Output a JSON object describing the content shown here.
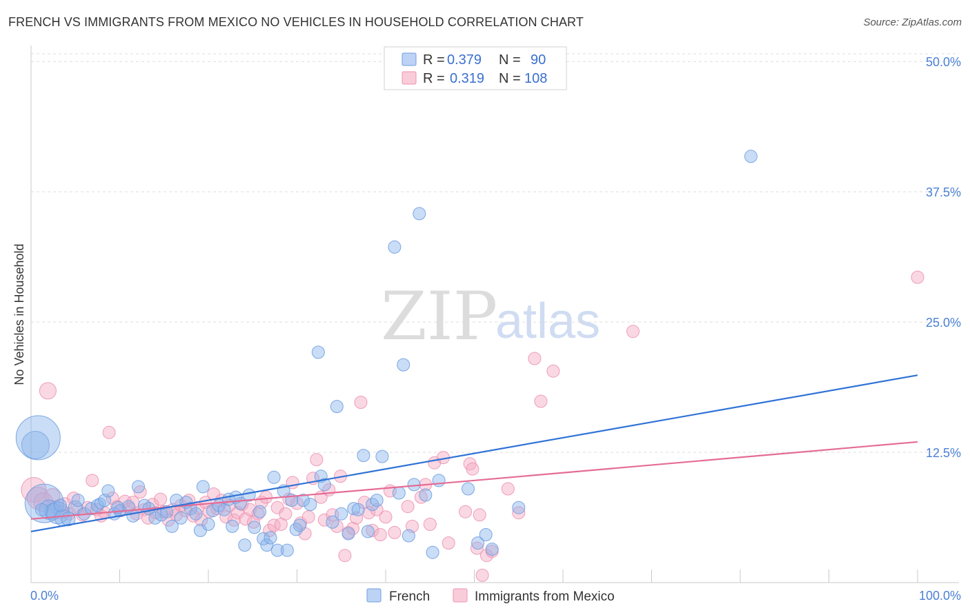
{
  "title": "FRENCH VS IMMIGRANTS FROM MEXICO NO VEHICLES IN HOUSEHOLD CORRELATION CHART",
  "source": "Source: ZipAtlas.com",
  "watermark": {
    "zip": "ZIP",
    "atlas": "atlas"
  },
  "legend": {
    "rows": [
      {
        "r_label": "R = ",
        "r_value": "0.379",
        "n_label": "N = ",
        "n_value": "90"
      },
      {
        "r_label": "R = ",
        "r_value": "0.319",
        "n_label": "N = ",
        "n_value": "108"
      }
    ]
  },
  "chart_data": {
    "type": "scatter",
    "title": "FRENCH VS IMMIGRANTS FROM MEXICO NO VEHICLES IN HOUSEHOLD CORRELATION CHART",
    "xlabel": "",
    "ylabel": "No Vehicles in Household",
    "xlim": [
      0,
      100
    ],
    "ylim": [
      0,
      52
    ],
    "x_tick_labels": [
      "0.0%",
      "100.0%"
    ],
    "y_ticks": [
      12.5,
      25.0,
      37.5,
      50.0
    ],
    "y_tick_labels": [
      "12.5%",
      "25.0%",
      "37.5%",
      "50.0%"
    ],
    "grid": true,
    "legend_position": "top-center",
    "colors": {
      "french": "#8ab4ea",
      "french_line": "#2f72d6",
      "mexico": "#f4a9c0",
      "mexico_line": "#e56b95"
    },
    "series": [
      {
        "name": "French",
        "r": 0.379,
        "n": 90,
        "trend": [
          [
            0,
            4.9
          ],
          [
            100,
            19.9
          ]
        ],
        "points": [
          [
            0.5,
            13.2,
            20
          ],
          [
            0.8,
            13.9,
            32
          ],
          [
            1.5,
            7.6,
            28
          ],
          [
            2.0,
            7.0,
            14
          ],
          [
            2.5,
            6.8,
            12
          ],
          [
            3.0,
            6.7,
            16
          ],
          [
            3.6,
            6.2,
            12
          ],
          [
            4.2,
            6.1,
            10
          ],
          [
            5.0,
            7.2,
            10
          ],
          [
            5.3,
            7.9,
            9
          ],
          [
            6.0,
            6.6,
            9
          ],
          [
            6.8,
            7.1,
            9
          ],
          [
            7.5,
            7.4,
            9
          ],
          [
            7.8,
            7.6,
            8
          ],
          [
            8.3,
            7.9,
            9
          ],
          [
            8.7,
            8.8,
            9
          ],
          [
            9.4,
            6.6,
            9
          ],
          [
            10.0,
            6.9,
            9
          ],
          [
            11.0,
            7.3,
            9
          ],
          [
            11.5,
            6.4,
            9
          ],
          [
            12.1,
            9.2,
            9
          ],
          [
            12.8,
            7.4,
            9
          ],
          [
            13.3,
            7.1,
            9
          ],
          [
            14.0,
            6.2,
            9
          ],
          [
            14.7,
            6.5,
            9
          ],
          [
            15.3,
            6.8,
            9
          ],
          [
            15.9,
            5.4,
            9
          ],
          [
            16.4,
            7.9,
            9
          ],
          [
            16.9,
            6.2,
            9
          ],
          [
            17.5,
            7.7,
            9
          ],
          [
            18.0,
            7.1,
            9
          ],
          [
            18.6,
            6.6,
            9
          ],
          [
            19.1,
            5.0,
            9
          ],
          [
            19.4,
            9.2,
            9
          ],
          [
            20.0,
            5.6,
            9
          ],
          [
            20.5,
            6.9,
            9
          ],
          [
            21.2,
            7.4,
            9
          ],
          [
            21.8,
            7.0,
            9
          ],
          [
            22.3,
            8.0,
            9
          ],
          [
            22.7,
            5.4,
            9
          ],
          [
            23.1,
            8.2,
            9
          ],
          [
            23.6,
            7.6,
            9
          ],
          [
            24.1,
            3.6,
            9
          ],
          [
            24.6,
            8.4,
            9
          ],
          [
            25.2,
            5.3,
            9
          ],
          [
            25.8,
            6.8,
            9
          ],
          [
            26.2,
            4.2,
            9
          ],
          [
            26.6,
            3.6,
            9
          ],
          [
            27.0,
            4.3,
            9
          ],
          [
            27.4,
            10.1,
            9
          ],
          [
            27.8,
            3.1,
            9
          ],
          [
            28.5,
            8.8,
            9
          ],
          [
            28.9,
            3.1,
            9
          ],
          [
            29.4,
            7.9,
            9
          ],
          [
            29.9,
            5.1,
            9
          ],
          [
            30.3,
            5.5,
            9
          ],
          [
            30.7,
            7.9,
            9
          ],
          [
            31.5,
            7.5,
            9
          ],
          [
            32.4,
            22.1,
            9
          ],
          [
            32.7,
            10.2,
            9
          ],
          [
            33.1,
            9.4,
            9
          ],
          [
            34.0,
            5.8,
            9
          ],
          [
            34.5,
            16.9,
            9
          ],
          [
            35.0,
            6.6,
            9
          ],
          [
            35.8,
            4.7,
            9
          ],
          [
            36.4,
            7.1,
            9
          ],
          [
            36.9,
            7.0,
            9
          ],
          [
            37.5,
            12.2,
            9
          ],
          [
            38.0,
            4.9,
            9
          ],
          [
            38.5,
            7.5,
            9
          ],
          [
            39.0,
            7.9,
            9
          ],
          [
            39.6,
            12.1,
            9
          ],
          [
            41.0,
            32.2,
            9
          ],
          [
            41.5,
            8.6,
            9
          ],
          [
            42.0,
            20.9,
            9
          ],
          [
            42.6,
            4.5,
            9
          ],
          [
            43.2,
            9.4,
            9
          ],
          [
            43.8,
            35.4,
            9
          ],
          [
            44.5,
            8.4,
            9
          ],
          [
            45.3,
            2.9,
            9
          ],
          [
            46.0,
            9.8,
            9
          ],
          [
            49.3,
            9.0,
            9
          ],
          [
            50.4,
            3.8,
            9
          ],
          [
            51.3,
            4.6,
            9
          ],
          [
            52.0,
            3.2,
            9
          ],
          [
            55.0,
            7.2,
            9
          ],
          [
            81.2,
            40.9,
            9
          ],
          [
            1.2,
            7.0,
            9
          ],
          [
            3.3,
            7.4,
            9
          ],
          [
            9.8,
            7.2,
            9
          ]
        ]
      },
      {
        "name": "Immigrants from Mexico",
        "r": 0.319,
        "n": 108,
        "trend": [
          [
            0,
            6.1
          ],
          [
            100,
            13.5
          ]
        ],
        "points": [
          [
            0.3,
            8.9,
            18
          ],
          [
            0.8,
            8.1,
            16
          ],
          [
            1.4,
            7.7,
            14
          ],
          [
            1.9,
            18.4,
            12
          ],
          [
            2.4,
            8.3,
            11
          ],
          [
            2.8,
            7.2,
            10
          ],
          [
            3.3,
            6.8,
            10
          ],
          [
            3.8,
            7.5,
            10
          ],
          [
            4.3,
            6.6,
            9
          ],
          [
            4.8,
            8.1,
            9
          ],
          [
            5.3,
            7.0,
            9
          ],
          [
            5.8,
            6.5,
            9
          ],
          [
            6.4,
            7.2,
            9
          ],
          [
            6.9,
            9.8,
            9
          ],
          [
            7.4,
            7.0,
            9
          ],
          [
            7.9,
            6.4,
            9
          ],
          [
            8.3,
            6.7,
            9
          ],
          [
            8.8,
            14.4,
            9
          ],
          [
            9.2,
            8.1,
            9
          ],
          [
            9.7,
            7.3,
            9
          ],
          [
            10.1,
            6.9,
            9
          ],
          [
            10.6,
            7.8,
            9
          ],
          [
            11.1,
            7.1,
            9
          ],
          [
            11.5,
            7.7,
            9
          ],
          [
            11.9,
            6.6,
            9
          ],
          [
            12.3,
            8.7,
            9
          ],
          [
            12.8,
            7.0,
            9
          ],
          [
            13.2,
            6.2,
            9
          ],
          [
            13.7,
            7.5,
            9
          ],
          [
            14.1,
            6.7,
            9
          ],
          [
            14.6,
            8.0,
            9
          ],
          [
            15.0,
            6.8,
            9
          ],
          [
            15.5,
            6.0,
            9
          ],
          [
            16.0,
            7.0,
            9
          ],
          [
            16.4,
            6.5,
            9
          ],
          [
            16.9,
            7.4,
            9
          ],
          [
            17.4,
            6.9,
            9
          ],
          [
            17.8,
            7.9,
            9
          ],
          [
            18.3,
            6.4,
            9
          ],
          [
            18.8,
            7.2,
            9
          ],
          [
            19.2,
            6.0,
            9
          ],
          [
            19.7,
            7.7,
            9
          ],
          [
            20.1,
            6.8,
            9
          ],
          [
            20.6,
            8.5,
            9
          ],
          [
            21.0,
            7.1,
            9
          ],
          [
            21.5,
            7.9,
            9
          ],
          [
            22.0,
            6.3,
            9
          ],
          [
            22.4,
            7.4,
            9
          ],
          [
            22.9,
            6.0,
            9
          ],
          [
            23.3,
            6.7,
            9
          ],
          [
            23.8,
            7.5,
            9
          ],
          [
            24.2,
            6.1,
            9
          ],
          [
            24.7,
            7.0,
            9
          ],
          [
            25.1,
            5.8,
            9
          ],
          [
            25.6,
            6.6,
            9
          ],
          [
            26.0,
            7.7,
            9
          ],
          [
            26.5,
            8.2,
            9
          ],
          [
            26.9,
            5.0,
            9
          ],
          [
            27.4,
            5.5,
            9
          ],
          [
            27.8,
            7.2,
            9
          ],
          [
            28.2,
            5.6,
            9
          ],
          [
            28.7,
            6.6,
            9
          ],
          [
            29.1,
            8.0,
            9
          ],
          [
            29.5,
            9.6,
            9
          ],
          [
            30.0,
            7.6,
            9
          ],
          [
            30.4,
            5.7,
            9
          ],
          [
            30.9,
            4.7,
            9
          ],
          [
            31.3,
            6.3,
            9
          ],
          [
            31.8,
            10.0,
            9
          ],
          [
            32.2,
            11.8,
            9
          ],
          [
            32.7,
            8.2,
            9
          ],
          [
            33.1,
            6.0,
            9
          ],
          [
            33.6,
            8.9,
            9
          ],
          [
            34.0,
            6.5,
            9
          ],
          [
            34.5,
            5.4,
            9
          ],
          [
            34.9,
            10.2,
            9
          ],
          [
            35.4,
            2.6,
            9
          ],
          [
            35.8,
            4.8,
            9
          ],
          [
            36.3,
            5.2,
            9
          ],
          [
            36.7,
            6.2,
            9
          ],
          [
            37.2,
            17.3,
            9
          ],
          [
            37.6,
            7.7,
            9
          ],
          [
            38.1,
            6.7,
            9
          ],
          [
            38.5,
            5.0,
            9
          ],
          [
            39.0,
            7.0,
            9
          ],
          [
            39.4,
            4.6,
            9
          ],
          [
            40.0,
            6.3,
            9
          ],
          [
            40.5,
            8.8,
            9
          ],
          [
            41.0,
            4.8,
            9
          ],
          [
            42.5,
            7.3,
            9
          ],
          [
            43.0,
            5.4,
            9
          ],
          [
            44.0,
            8.2,
            9
          ],
          [
            44.5,
            9.4,
            9
          ],
          [
            45.0,
            5.6,
            9
          ],
          [
            45.5,
            11.5,
            9
          ],
          [
            46.5,
            12.0,
            9
          ],
          [
            47.1,
            3.8,
            9
          ],
          [
            49.0,
            6.8,
            9
          ],
          [
            49.5,
            11.4,
            9
          ],
          [
            49.8,
            10.9,
            9
          ],
          [
            50.3,
            3.3,
            9
          ],
          [
            50.6,
            6.5,
            9
          ],
          [
            50.9,
            0.7,
            9
          ],
          [
            51.4,
            2.6,
            9
          ],
          [
            52.0,
            3.0,
            9
          ],
          [
            53.8,
            9.0,
            9
          ],
          [
            55.0,
            6.7,
            9
          ],
          [
            56.8,
            21.5,
            9
          ],
          [
            57.5,
            17.4,
            9
          ],
          [
            58.9,
            20.3,
            9
          ],
          [
            67.9,
            24.1,
            9
          ],
          [
            100.0,
            29.3,
            9
          ]
        ]
      }
    ]
  },
  "bottom_legend": [
    {
      "label": "French"
    },
    {
      "label": "Immigrants from Mexico"
    }
  ]
}
